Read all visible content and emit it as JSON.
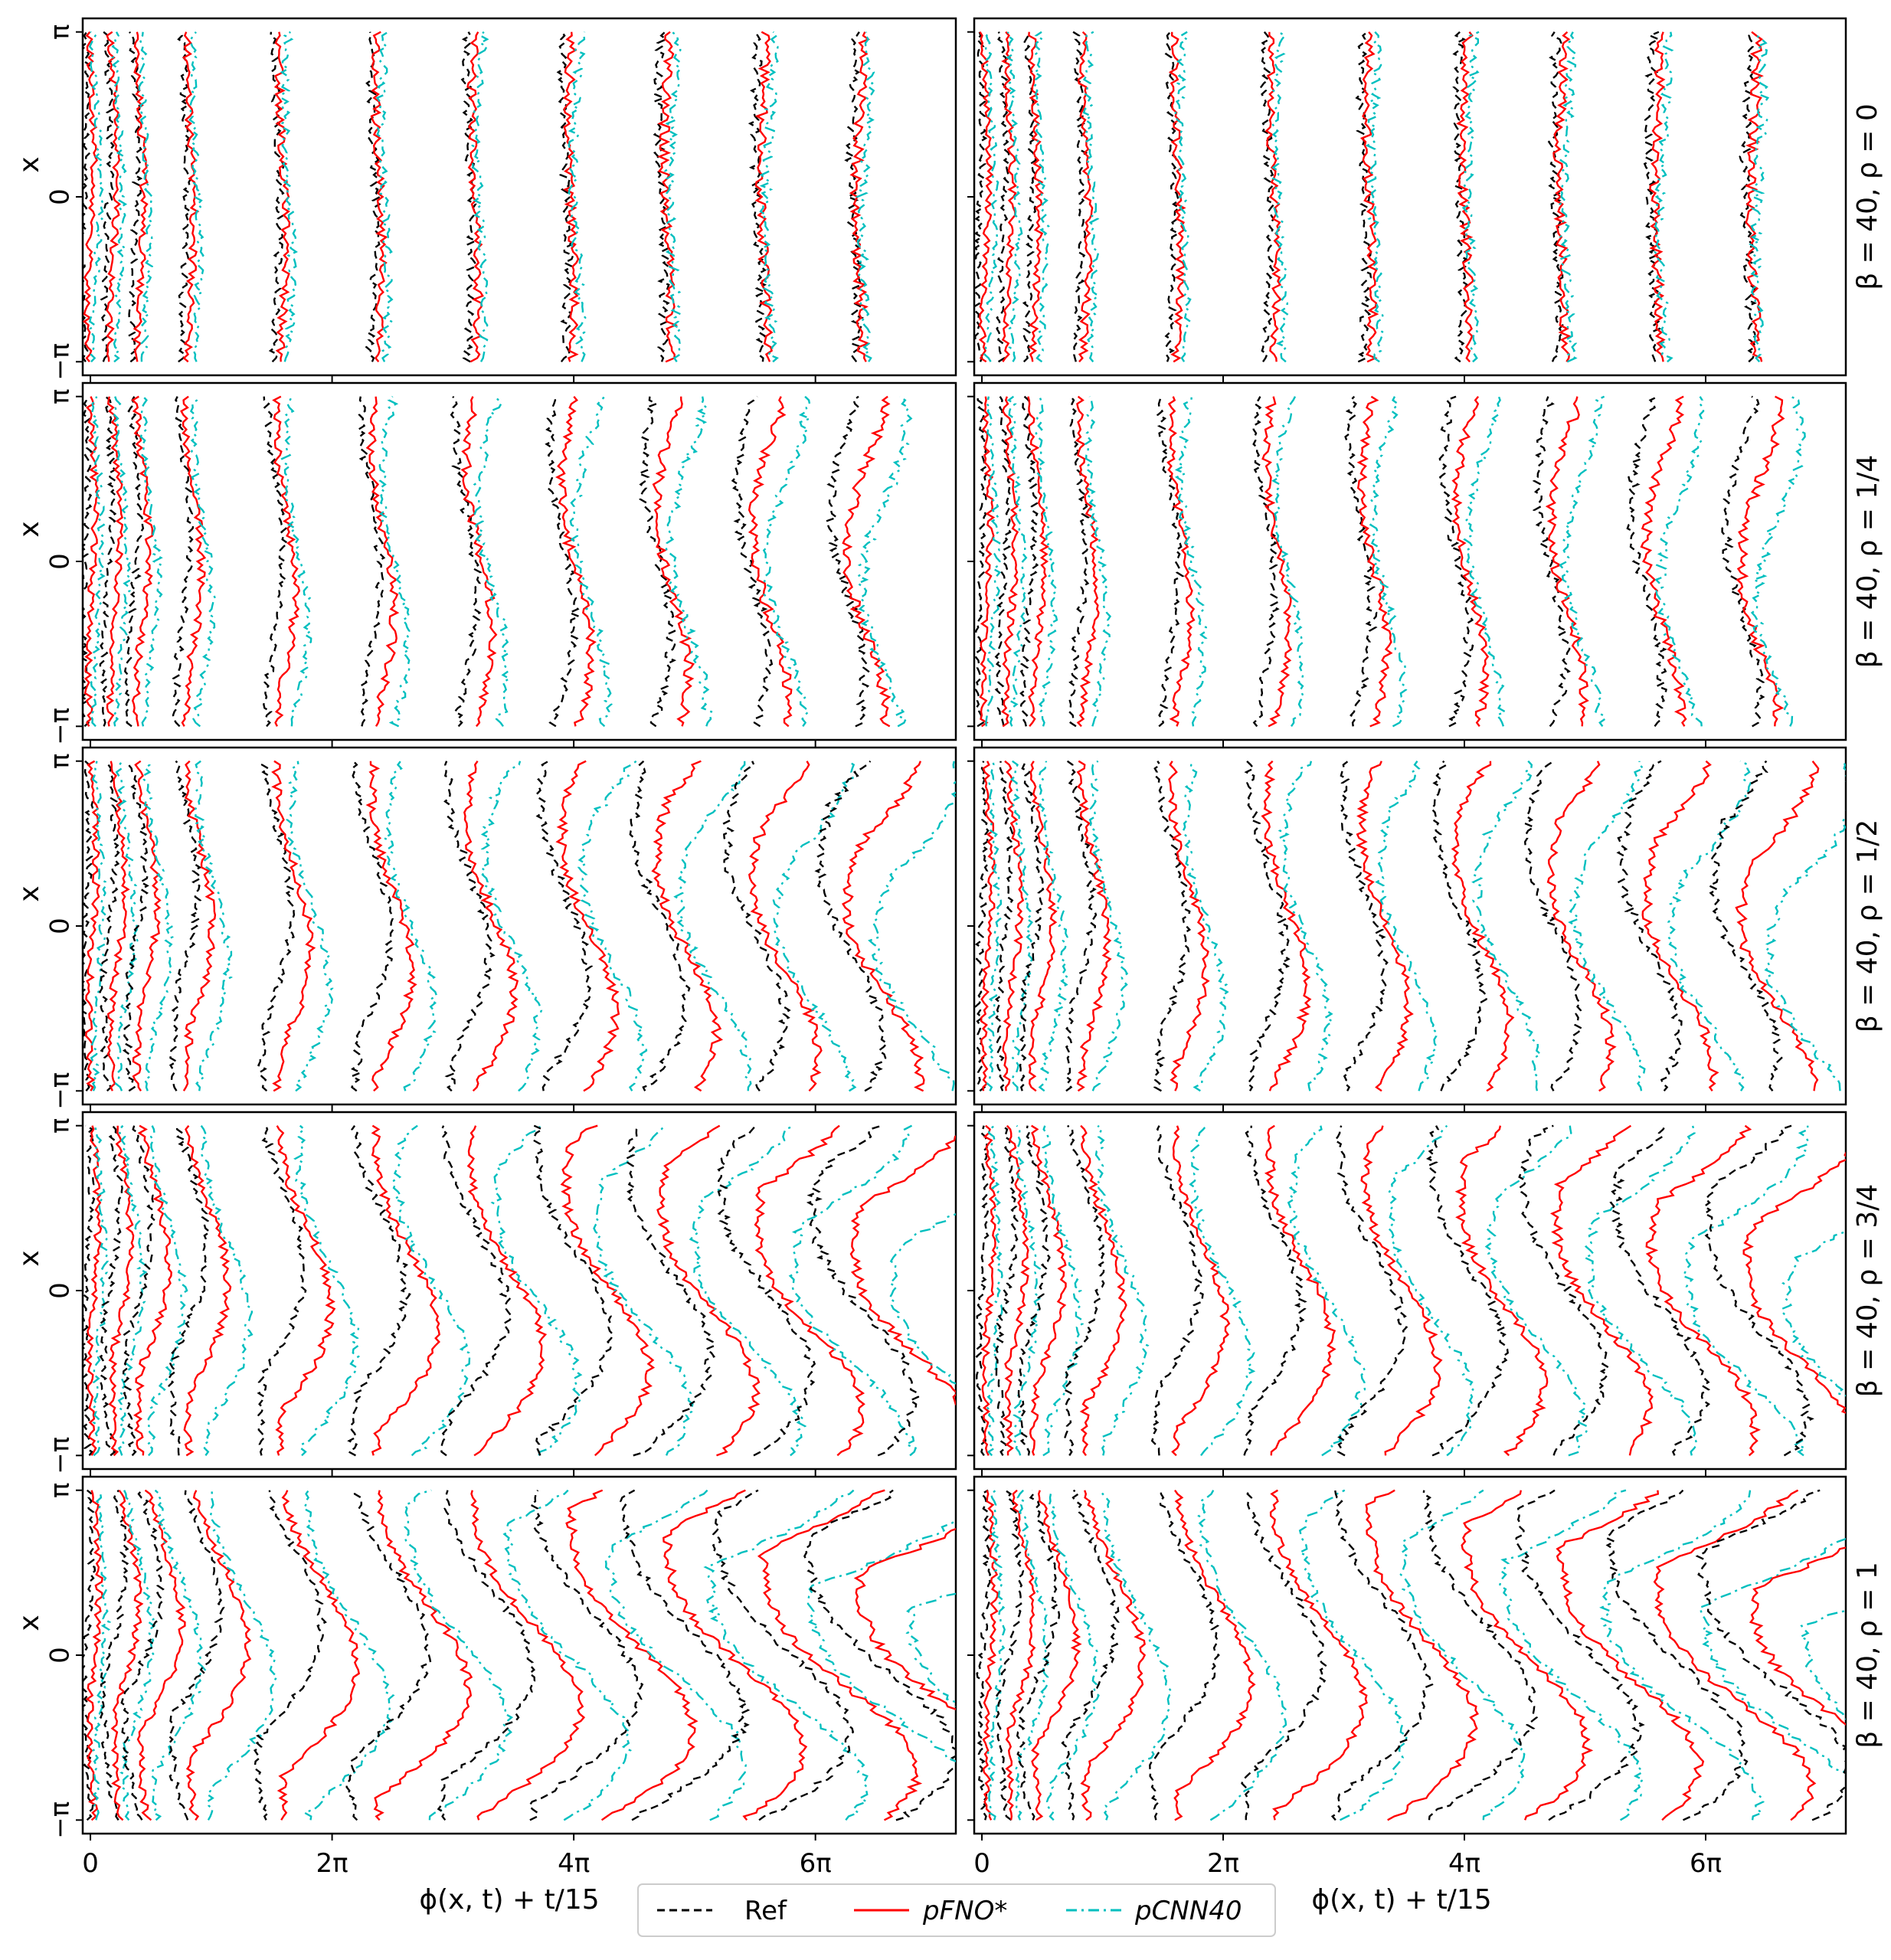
{
  "chart_data": {
    "type": "line",
    "description_layout": "5 rows x 2 columns grid of small-multiple line plots",
    "xlabel": "ϕ(x, t) + t/15",
    "ylabel": "x",
    "x_ticks": [
      "0",
      "2π",
      "4π",
      "6π"
    ],
    "x_tick_values": [
      0,
      6.2832,
      12.5664,
      18.8496
    ],
    "x_range": [
      -0.2,
      22.5
    ],
    "y_ticks": [
      "−π",
      "0",
      "π"
    ],
    "y_tick_values": [
      -3.1416,
      0,
      3.1416
    ],
    "y_range": [
      -3.4,
      3.4
    ],
    "rows": [
      {
        "label": "β = 40, ρ = 0",
        "rho": 0
      },
      {
        "label": "β = 40, ρ = 1/4",
        "rho": 0.25
      },
      {
        "label": "β = 40, ρ = 1/2",
        "rho": 0.5
      },
      {
        "label": "β = 40, ρ = 3/4",
        "rho": 0.75
      },
      {
        "label": "β = 40, ρ = 1",
        "rho": 1
      }
    ],
    "columns": 2,
    "time_offsets_x": [
      0,
      0.6,
      1.3,
      2.6,
      5.0,
      7.5,
      10.0,
      12.5,
      15.0,
      17.5,
      20.0
    ],
    "series": [
      {
        "name": "Ref",
        "color": "#000000",
        "dash": "10,6"
      },
      {
        "name": "pFNO*",
        "color": "#ff0000",
        "dash": ""
      },
      {
        "name": "pCNN40",
        "color": "#00bfbf",
        "dash": "14,6,3,6"
      }
    ],
    "legend": [
      "Ref",
      "pFNO*",
      "pCNN40"
    ],
    "legend_position": "bottom-center",
    "grid": false
  }
}
